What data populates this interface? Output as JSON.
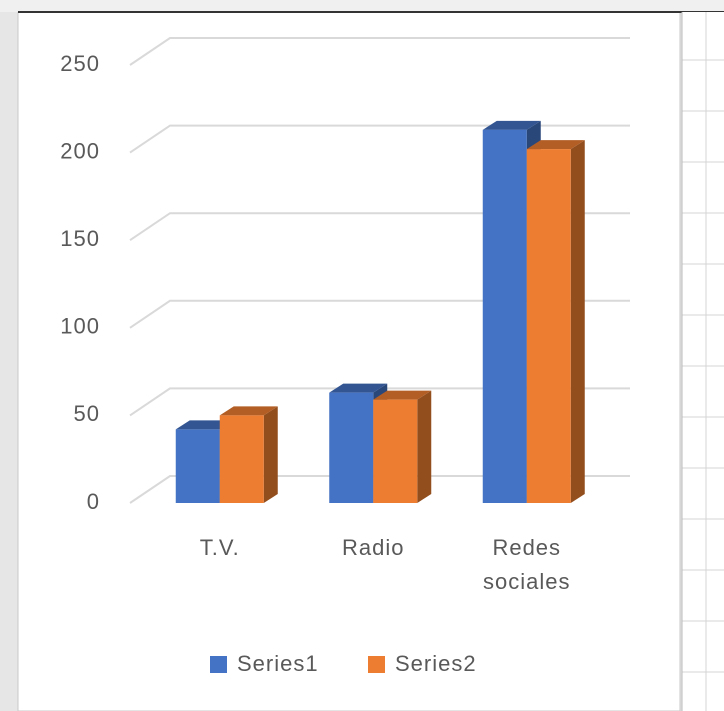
{
  "chart_data": {
    "type": "bar3d",
    "categories": [
      "T.V.",
      "Radio",
      "Redes sociales"
    ],
    "series": [
      {
        "name": "Series1",
        "color": "#4472c4",
        "values": [
          42,
          63,
          213
        ]
      },
      {
        "name": "Series2",
        "color": "#ed7d31",
        "values": [
          50,
          59,
          202
        ]
      }
    ],
    "ylim": [
      0,
      250
    ],
    "yticks": [
      0,
      50,
      100,
      150,
      200,
      250
    ],
    "grid": true,
    "legend": "bottom"
  }
}
